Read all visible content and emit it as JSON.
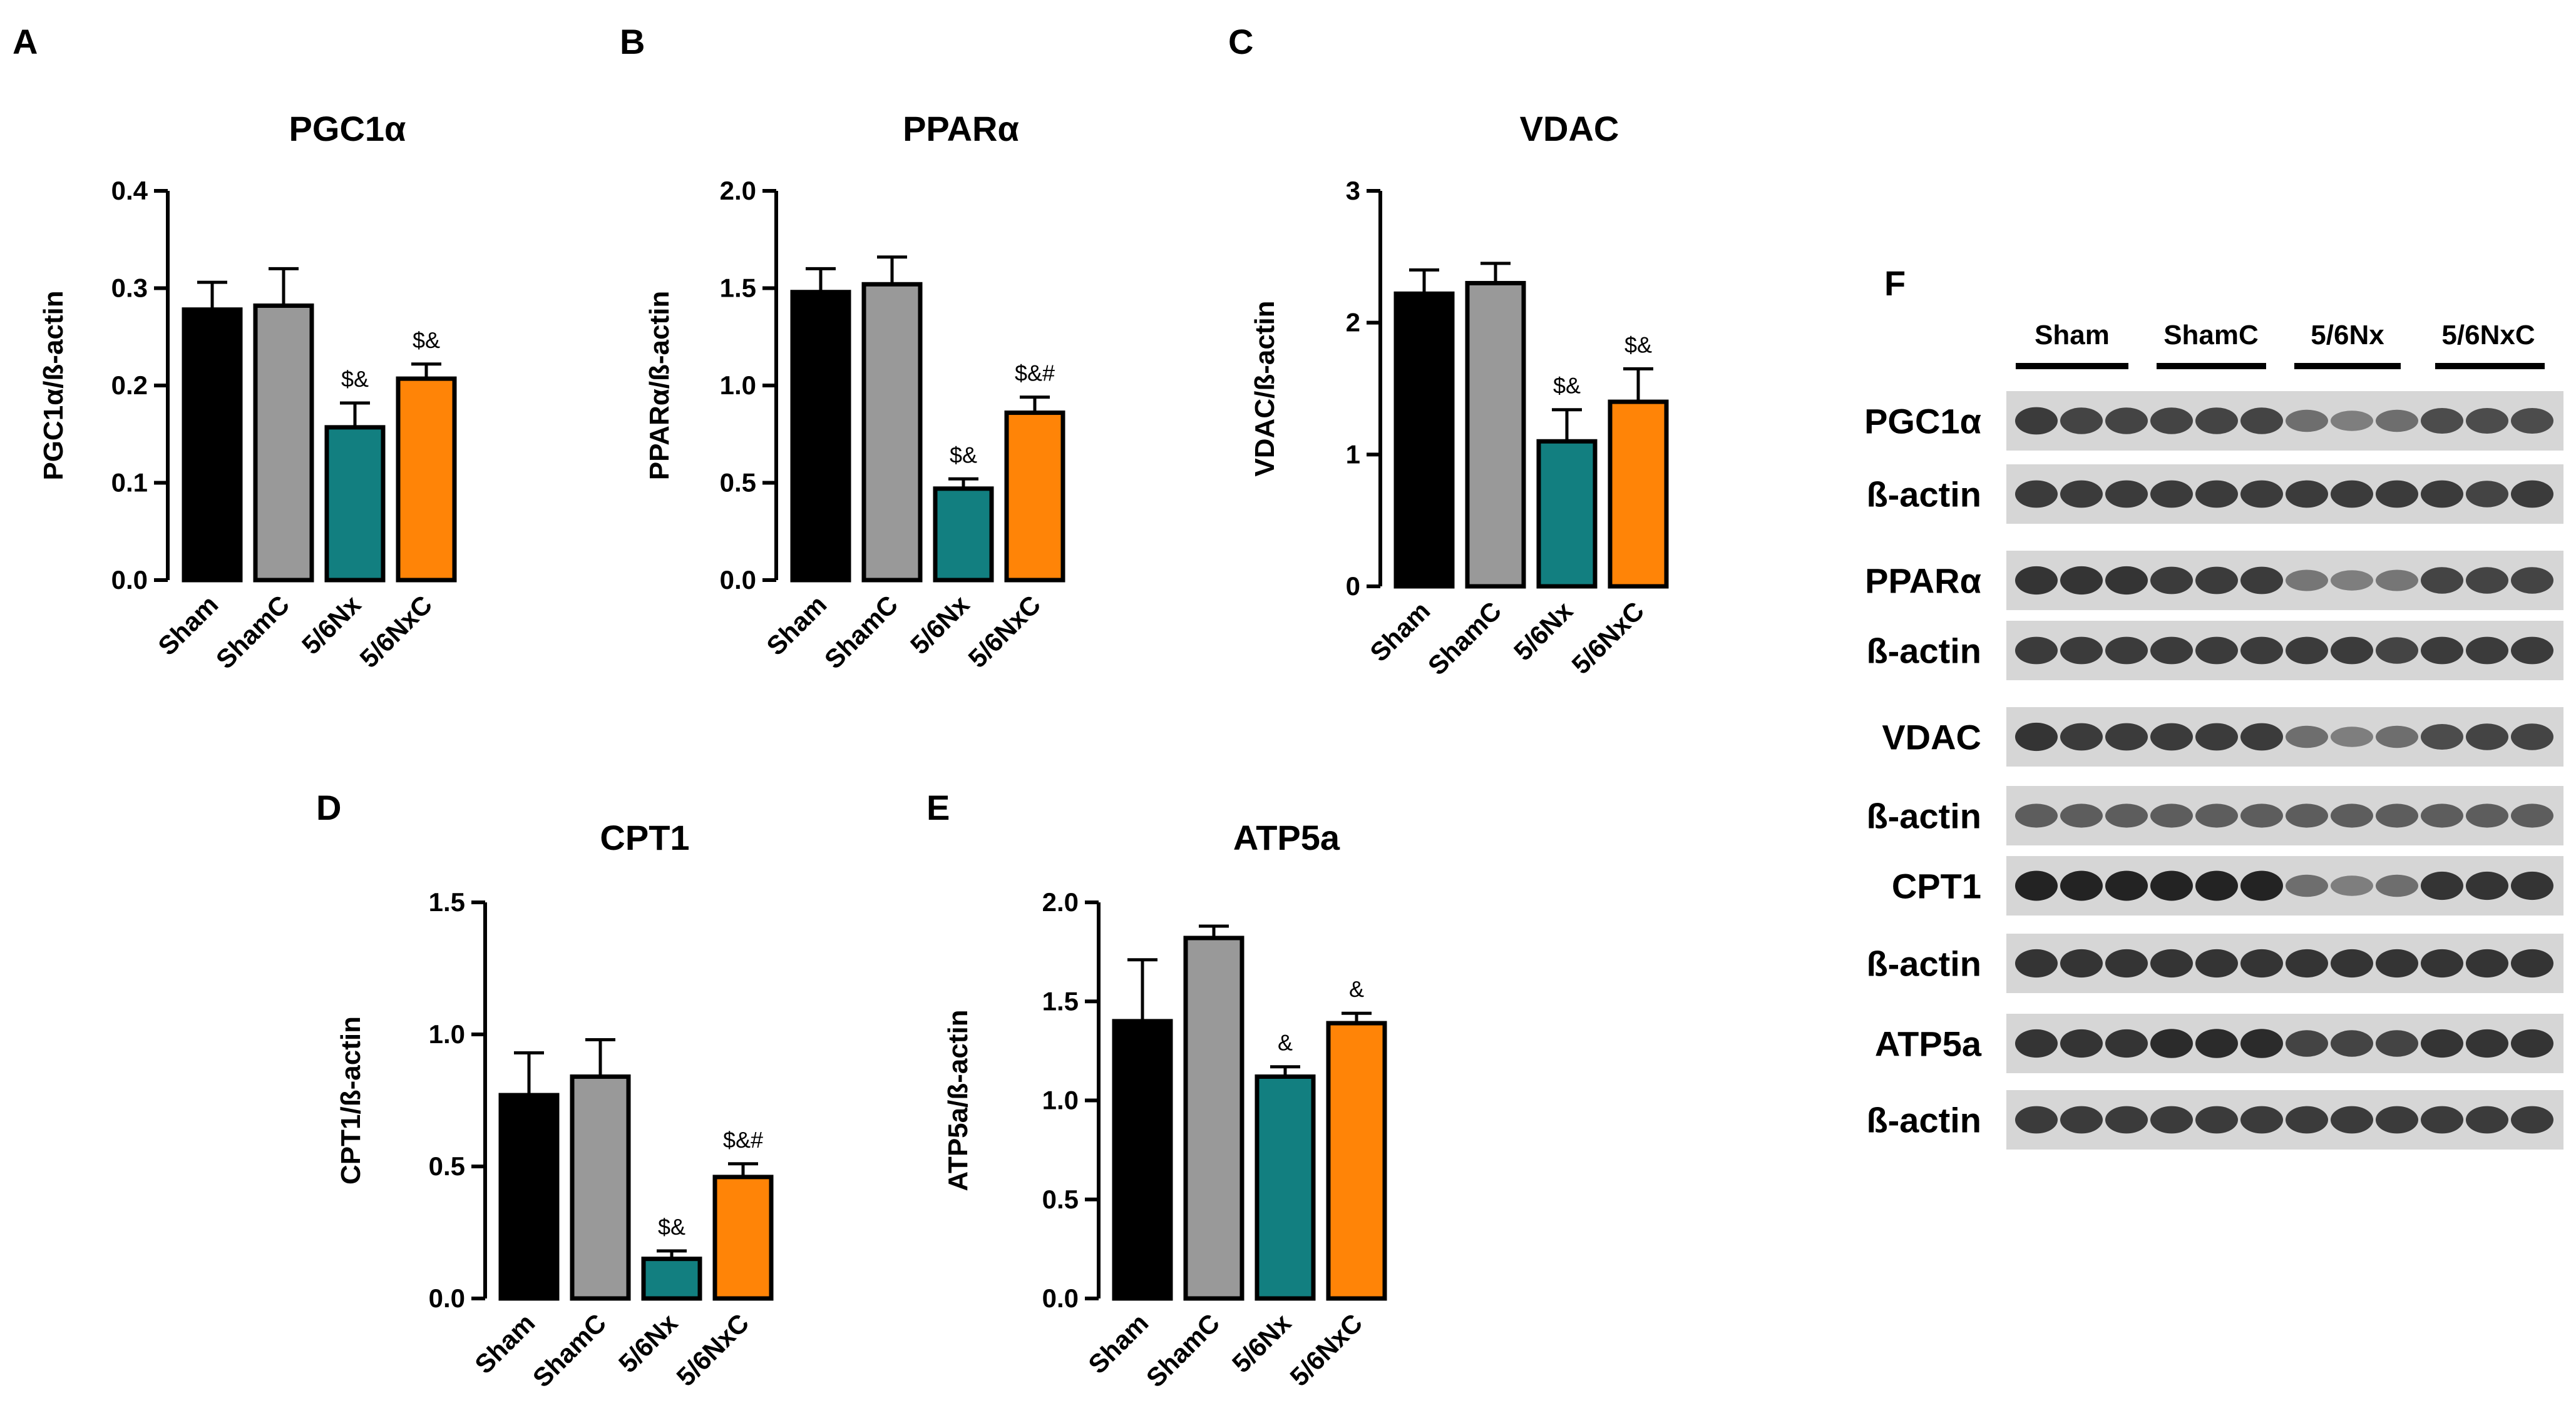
{
  "colors": {
    "Sham": "#000000",
    "ShamC": "#999999",
    "5/6Nx": "#127f80",
    "5/6NxC": "#ff8407"
  },
  "chart_data": [
    {
      "panel": "A",
      "type": "bar",
      "title": "PGC1α",
      "ylabel": "PGC1α/ß-actin",
      "categories": [
        "Sham",
        "ShamC",
        "5/6Nx",
        "5/6NxC"
      ],
      "values": [
        0.278,
        0.282,
        0.157,
        0.207
      ],
      "errors": [
        0.028,
        0.038,
        0.025,
        0.015
      ],
      "annotations": [
        "",
        "",
        "$&",
        "$&"
      ],
      "ylim": [
        0,
        0.4
      ],
      "ticks": [
        0,
        0.1,
        0.2,
        0.3,
        0.4
      ],
      "tick_labels": [
        "0.0",
        "0.1",
        "0.2",
        "0.3",
        "0.4"
      ]
    },
    {
      "panel": "B",
      "type": "bar",
      "title": "PPARα",
      "ylabel": "PPARα/ß-actin",
      "categories": [
        "Sham",
        "ShamC",
        "5/6Nx",
        "5/6NxC"
      ],
      "values": [
        1.48,
        1.52,
        0.47,
        0.86
      ],
      "errors": [
        0.12,
        0.14,
        0.05,
        0.08
      ],
      "annotations": [
        "",
        "",
        "$&",
        "$&#"
      ],
      "ylim": [
        0,
        2.0
      ],
      "ticks": [
        0,
        0.5,
        1.0,
        1.5,
        2.0
      ],
      "tick_labels": [
        "0.0",
        "0.5",
        "1.0",
        "1.5",
        "2.0"
      ]
    },
    {
      "panel": "C",
      "type": "bar",
      "title": "VDAC",
      "ylabel": "VDAC/ß-actin",
      "categories": [
        "Sham",
        "ShamC",
        "5/6Nx",
        "5/6NxC"
      ],
      "values": [
        2.22,
        2.3,
        1.1,
        1.4
      ],
      "errors": [
        0.18,
        0.15,
        0.24,
        0.25
      ],
      "annotations": [
        "",
        "",
        "$&",
        "$&"
      ],
      "ylim": [
        0,
        3
      ],
      "ticks": [
        0,
        1,
        2,
        3
      ],
      "tick_labels": [
        "0",
        "1",
        "2",
        "3"
      ]
    },
    {
      "panel": "D",
      "type": "bar",
      "title": "CPT1",
      "ylabel": "CPT1/ß-actin",
      "categories": [
        "Sham",
        "ShamC",
        "5/6Nx",
        "5/6NxC"
      ],
      "values": [
        0.77,
        0.84,
        0.15,
        0.46
      ],
      "errors": [
        0.16,
        0.14,
        0.03,
        0.05
      ],
      "annotations": [
        "",
        "",
        "$&",
        "$&#"
      ],
      "ylim": [
        0,
        1.5
      ],
      "ticks": [
        0,
        0.5,
        1.0,
        1.5
      ],
      "tick_labels": [
        "0.0",
        "0.5",
        "1.0",
        "1.5"
      ]
    },
    {
      "panel": "E",
      "type": "bar",
      "title": "ATP5a",
      "ylabel": "ATP5a/ß-actin",
      "categories": [
        "Sham",
        "ShamC",
        "5/6Nx",
        "5/6NxC"
      ],
      "values": [
        1.4,
        1.82,
        1.12,
        1.39
      ],
      "errors": [
        0.31,
        0.06,
        0.05,
        0.05
      ],
      "annotations": [
        "",
        "",
        "&",
        "&"
      ],
      "ylim": [
        0,
        2.0
      ],
      "ticks": [
        0,
        0.5,
        1.0,
        1.5,
        2.0
      ],
      "tick_labels": [
        "0.0",
        "0.5",
        "1.0",
        "1.5",
        "2.0"
      ]
    }
  ],
  "blot": {
    "panel": "F",
    "groups": [
      "Sham",
      "ShamC",
      "5/6Nx",
      "5/6NxC"
    ],
    "rows": [
      {
        "label": "PGC1α",
        "intensity": [
          0.85,
          0.8,
          0.8,
          0.8,
          0.8,
          0.8,
          0.55,
          0.45,
          0.55,
          0.75,
          0.75,
          0.75
        ]
      },
      {
        "label": "ß-actin",
        "intensity": [
          0.85,
          0.85,
          0.85,
          0.85,
          0.85,
          0.85,
          0.85,
          0.85,
          0.85,
          0.85,
          0.8,
          0.85
        ]
      },
      {
        "label": "PPARα",
        "intensity": [
          0.9,
          0.9,
          0.9,
          0.85,
          0.85,
          0.85,
          0.5,
          0.45,
          0.5,
          0.8,
          0.8,
          0.8
        ]
      },
      {
        "label": "ß-actin",
        "intensity": [
          0.85,
          0.85,
          0.85,
          0.85,
          0.85,
          0.85,
          0.85,
          0.85,
          0.8,
          0.85,
          0.85,
          0.85
        ]
      },
      {
        "label": "VDAC",
        "intensity": [
          0.9,
          0.85,
          0.85,
          0.85,
          0.85,
          0.85,
          0.55,
          0.45,
          0.55,
          0.75,
          0.8,
          0.8
        ]
      },
      {
        "label": "ß-actin",
        "intensity": [
          0.65,
          0.65,
          0.65,
          0.65,
          0.65,
          0.65,
          0.65,
          0.65,
          0.65,
          0.65,
          0.65,
          0.65
        ]
      },
      {
        "label": "CPT1",
        "intensity": [
          1.0,
          1.0,
          1.0,
          1.0,
          1.0,
          1.0,
          0.55,
          0.45,
          0.55,
          0.9,
          0.9,
          0.9
        ]
      },
      {
        "label": "ß-actin",
        "intensity": [
          0.9,
          0.9,
          0.9,
          0.9,
          0.9,
          0.9,
          0.9,
          0.9,
          0.9,
          0.9,
          0.9,
          0.9
        ]
      },
      {
        "label": "ATP5a",
        "intensity": [
          0.9,
          0.9,
          0.9,
          0.95,
          0.95,
          0.95,
          0.8,
          0.8,
          0.8,
          0.9,
          0.9,
          0.9
        ]
      },
      {
        "label": "ß-actin",
        "intensity": [
          0.85,
          0.85,
          0.85,
          0.85,
          0.85,
          0.85,
          0.85,
          0.85,
          0.85,
          0.85,
          0.85,
          0.85
        ]
      }
    ]
  }
}
